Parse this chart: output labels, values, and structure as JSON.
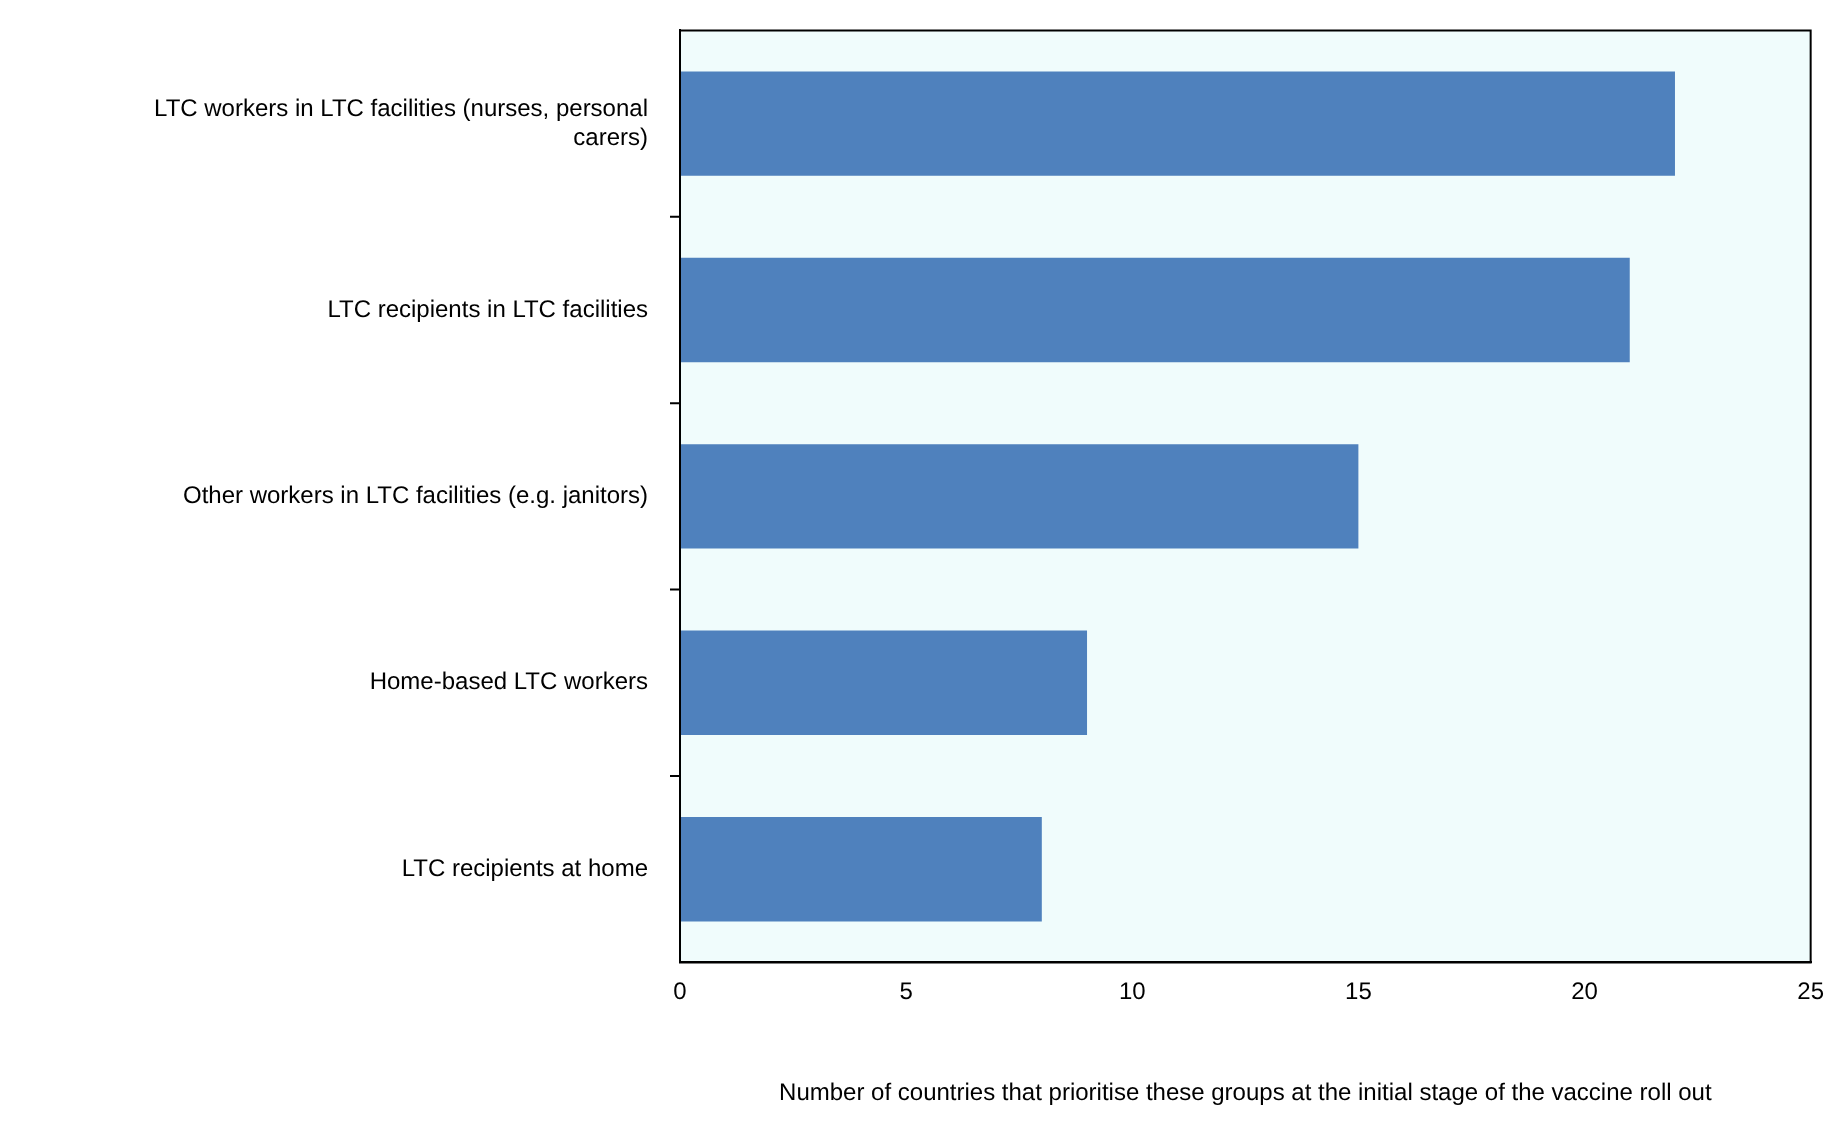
{
  "chart_data": {
    "type": "bar",
    "orientation": "horizontal",
    "categories": [
      "LTC workers in LTC facilities (nurses, personal carers)",
      "LTC recipients in LTC facilities",
      "Other workers in LTC facilities (e.g. janitors)",
      "Home-based LTC workers",
      "LTC recipients at home"
    ],
    "values": [
      22,
      21,
      15,
      9,
      8
    ],
    "color": "#4f81bd",
    "xlim": [
      0,
      25
    ],
    "xticks": [
      0,
      5,
      10,
      15,
      20,
      25
    ],
    "xlabel": "Number of countries that prioritise these groups at the initial stage of the vaccine roll out",
    "grid": false,
    "legend": false
  }
}
